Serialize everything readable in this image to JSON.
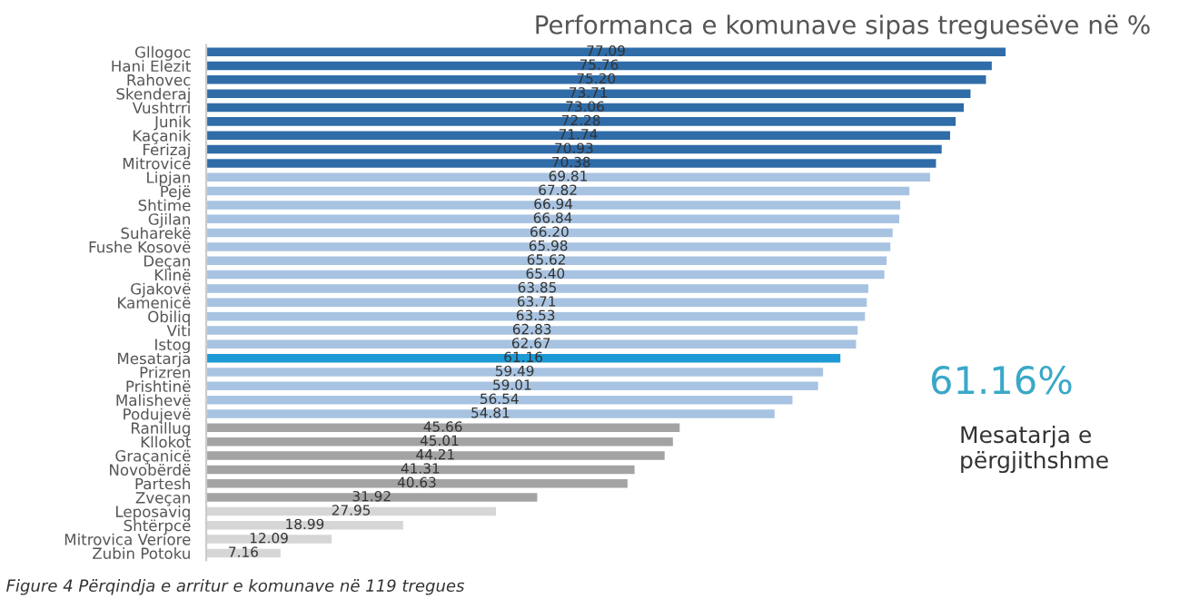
{
  "chart_data": {
    "type": "bar",
    "orientation": "horizontal",
    "title": "Performanca e komunave sipas treguesëve në %",
    "categories": [
      "Gllogoc",
      "Hani Elezit",
      "Rahovec",
      "Skenderaj",
      "Vushtrri",
      "Junik",
      "Kaçanik",
      "Ferizaj",
      "Mitrovicë",
      "Lipjan",
      "Pejë",
      "Shtime",
      "Gjilan",
      "Suharekë",
      "Fushe Kosovë",
      "Deçan",
      "Klinë",
      "Gjakovë",
      "Kamenicë",
      "Obiliq",
      "Viti",
      "Istog",
      "Mesatarja",
      "Prizren",
      "Prishtinë",
      "Malishevë",
      "Podujevë",
      "Ranillug",
      "Kllokot",
      "Graçanicë",
      "Novobërdë",
      "Partesh",
      "Zveçan",
      "Leposaviq",
      "Shtërpcë",
      "Mitrovica Veriore",
      "Zubin Potoku"
    ],
    "values": [
      77.09,
      75.76,
      75.2,
      73.71,
      73.06,
      72.28,
      71.74,
      70.93,
      70.38,
      69.81,
      67.82,
      66.94,
      66.84,
      66.2,
      65.98,
      65.62,
      65.4,
      63.85,
      63.71,
      63.53,
      62.83,
      62.67,
      61.16,
      59.49,
      59.01,
      56.54,
      54.81,
      45.66,
      45.01,
      44.21,
      41.31,
      40.63,
      31.92,
      27.95,
      18.99,
      12.09,
      7.16
    ],
    "colors": [
      "#2f6ca8",
      "#2f6ca8",
      "#2f6ca8",
      "#2f6ca8",
      "#2f6ca8",
      "#2f6ca8",
      "#2f6ca8",
      "#2f6ca8",
      "#2f6ca8",
      "#a7c3e1",
      "#a7c3e1",
      "#a7c3e1",
      "#a7c3e1",
      "#a7c3e1",
      "#a7c3e1",
      "#a7c3e1",
      "#a7c3e1",
      "#a7c3e1",
      "#a7c3e1",
      "#a7c3e1",
      "#a7c3e1",
      "#a7c3e1",
      "#1d9ad6",
      "#a7c3e1",
      "#a7c3e1",
      "#a7c3e1",
      "#a7c3e1",
      "#a3a3a3",
      "#a3a3a3",
      "#a3a3a3",
      "#a3a3a3",
      "#a3a3a3",
      "#a3a3a3",
      "#d6d6d6",
      "#d6d6d6",
      "#d6d6d6",
      "#d6d6d6"
    ],
    "value_labels": [
      "77.09",
      "75.76",
      "75.20",
      "73.71",
      "73.06",
      "72.28",
      "71.74",
      "70.93",
      "70.38",
      "69.81",
      "67.82",
      "66.94",
      "66.84",
      "66.20",
      "65.98",
      "65.62",
      "65.40",
      "63.85",
      "63.71",
      "63.53",
      "62.83",
      "62.67",
      "61.16",
      "59.49",
      "59.01",
      "56.54",
      "54.81",
      "45.66",
      "45.01",
      "44.21",
      "41.31",
      "40.63",
      "31.92",
      "27.95",
      "18.99",
      "12.09",
      "7.16"
    ],
    "grid": false,
    "legend": false,
    "annotations": [
      "61.16%",
      "Mesatarja e përgjithshme",
      "Figure 4 Përqindja e arritur e komunave në 119 tregues"
    ]
  }
}
